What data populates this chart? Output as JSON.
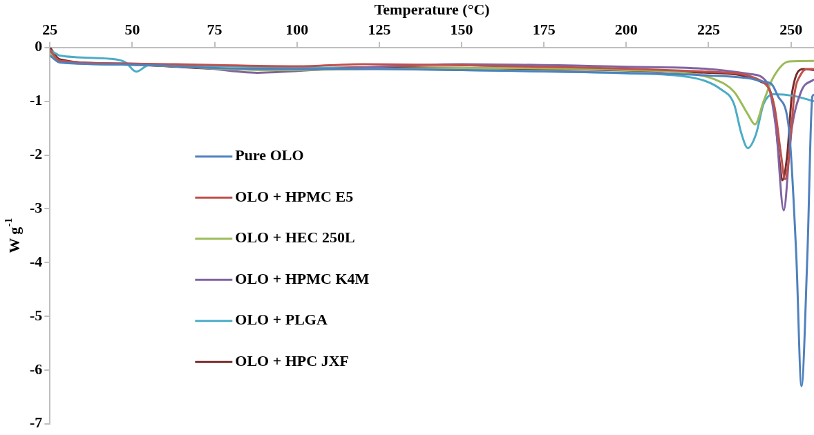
{
  "chart_data": {
    "type": "line",
    "xlabel": "Temperature (°C)",
    "ylabel": "W g$^{-1}$",
    "xlim": [
      25,
      257
    ],
    "xticks": [
      25,
      50,
      75,
      100,
      125,
      150,
      175,
      200,
      225,
      250
    ],
    "ylim": [
      -7,
      0
    ],
    "yticks": [
      0,
      -1,
      -2,
      -3,
      -4,
      -5,
      -6,
      -7
    ],
    "grid": false,
    "legend": "left",
    "marker": "none",
    "line_style": "solid",
    "series": [
      {
        "name": "Pure OLO",
        "color": "#4f81bd",
        "x": [
          25,
          28,
          50,
          75,
          100,
          125,
          150,
          200,
          225,
          238,
          241,
          244.1,
          246,
          249.4,
          251.6,
          253.2,
          255,
          256.5,
          257
        ],
        "values": [
          -0.15,
          -0.28,
          -0.32,
          -0.38,
          -0.4,
          -0.4,
          -0.42,
          -0.47,
          -0.52,
          -0.58,
          -0.63,
          -0.68,
          -0.9,
          -1.52,
          -3.84,
          -6.3,
          -3.84,
          -0.91,
          -0.88
        ]
      },
      {
        "name": "OLO + HPMC E5",
        "color": "#c0504d",
        "x": [
          25,
          28,
          50,
          100,
          120,
          175,
          225,
          241,
          245,
          247,
          248.2,
          249.5,
          251,
          253,
          255,
          257
        ],
        "values": [
          -0.05,
          -0.25,
          -0.3,
          -0.35,
          -0.31,
          -0.36,
          -0.45,
          -0.62,
          -1.1,
          -2.0,
          -2.45,
          -2.0,
          -0.9,
          -0.5,
          -0.4,
          -0.4
        ]
      },
      {
        "name": "OLO + HEC 250L",
        "color": "#9bbb59",
        "x": [
          25,
          28,
          50,
          90,
          150,
          200,
          219,
          226.7,
          232.7,
          236.9,
          239.1,
          241.7,
          244.7,
          249.4,
          257
        ],
        "values": [
          -0.1,
          -0.27,
          -0.32,
          -0.42,
          -0.38,
          -0.42,
          -0.48,
          -0.59,
          -0.82,
          -1.24,
          -1.43,
          -1.0,
          -0.55,
          -0.26,
          -0.25
        ]
      },
      {
        "name": "OLO + HPMC K4M",
        "color": "#8064a2",
        "x": [
          25,
          28,
          50,
          70,
          88,
          110,
          150,
          200,
          225,
          237.3,
          242.6,
          245.5,
          247.8,
          250,
          253.1,
          257
        ],
        "values": [
          -0.08,
          -0.25,
          -0.3,
          -0.37,
          -0.47,
          -0.4,
          -0.31,
          -0.36,
          -0.4,
          -0.49,
          -0.64,
          -1.52,
          -3.03,
          -1.61,
          -0.82,
          -0.59
        ]
      },
      {
        "name": "OLO + PLGA",
        "color": "#4bacc6",
        "x": [
          25,
          27,
          28,
          45,
          48,
          51.2,
          55,
          100,
          150,
          200,
          219.1,
          228.8,
          232.7,
          235,
          236.9,
          239.4,
          241.7,
          244.7,
          250.8,
          257
        ],
        "values": [
          -0.05,
          -0.12,
          -0.15,
          -0.22,
          -0.28,
          -0.45,
          -0.33,
          -0.37,
          -0.42,
          -0.48,
          -0.55,
          -0.78,
          -1.05,
          -1.61,
          -1.87,
          -1.61,
          -1.05,
          -0.87,
          -0.9,
          -1.0
        ]
      },
      {
        "name": "OLO + HPC JXF",
        "color": "#772c2a",
        "x": [
          25,
          28,
          50,
          80,
          125,
          175,
          225,
          241,
          244.7,
          246.3,
          247.4,
          248.9,
          250.4,
          253.8,
          257
        ],
        "values": [
          0,
          -0.22,
          -0.32,
          -0.4,
          -0.37,
          -0.4,
          -0.47,
          -0.64,
          -1.05,
          -1.98,
          -2.47,
          -1.98,
          -0.82,
          -0.4,
          -0.42
        ]
      }
    ]
  }
}
